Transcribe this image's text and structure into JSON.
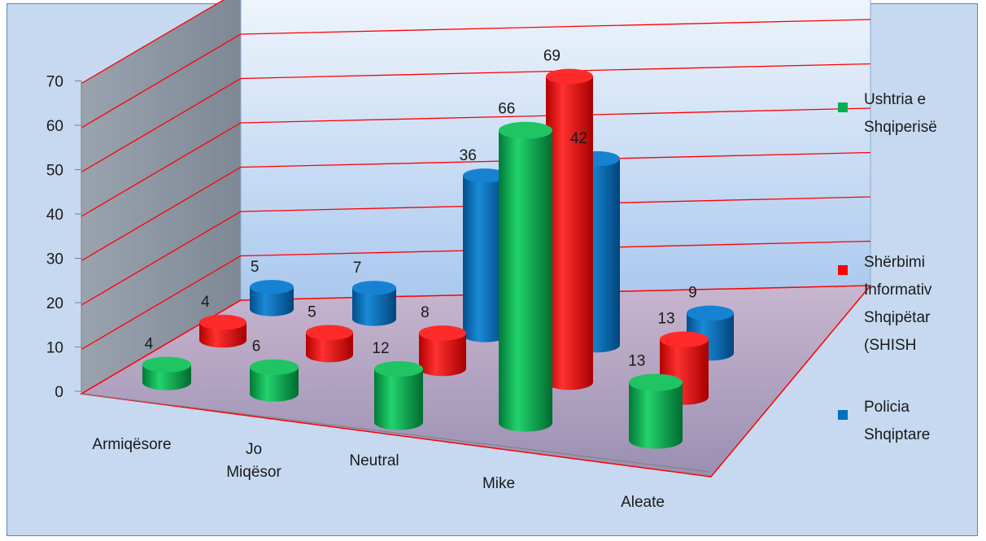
{
  "chart_data": {
    "type": "bar",
    "style": "3d-cylinder",
    "title": "",
    "xlabel": "",
    "ylabel": "",
    "ylim": [
      0,
      70
    ],
    "y_ticks": [
      "0",
      "10",
      "20",
      "30",
      "40",
      "50",
      "60",
      "70"
    ],
    "categories": [
      "Armiqësore",
      "Jo Miqësor",
      "Neutral",
      "Mike",
      "Aleate"
    ],
    "series": [
      {
        "name": "Ushtria e Shqiperisë",
        "color": "#00b050",
        "values": [
          4,
          6,
          12,
          66,
          13
        ]
      },
      {
        "name": "Shërbimi Informativ Shqipëtar (SHISH",
        "color": "#ff0000",
        "values": [
          4,
          5,
          8,
          69,
          13
        ]
      },
      {
        "name": "Policia Shqiptare",
        "color": "#0070c0",
        "values": [
          5,
          7,
          36,
          42,
          9
        ]
      }
    ],
    "grid": true,
    "legend": "right",
    "data_labels": true
  }
}
